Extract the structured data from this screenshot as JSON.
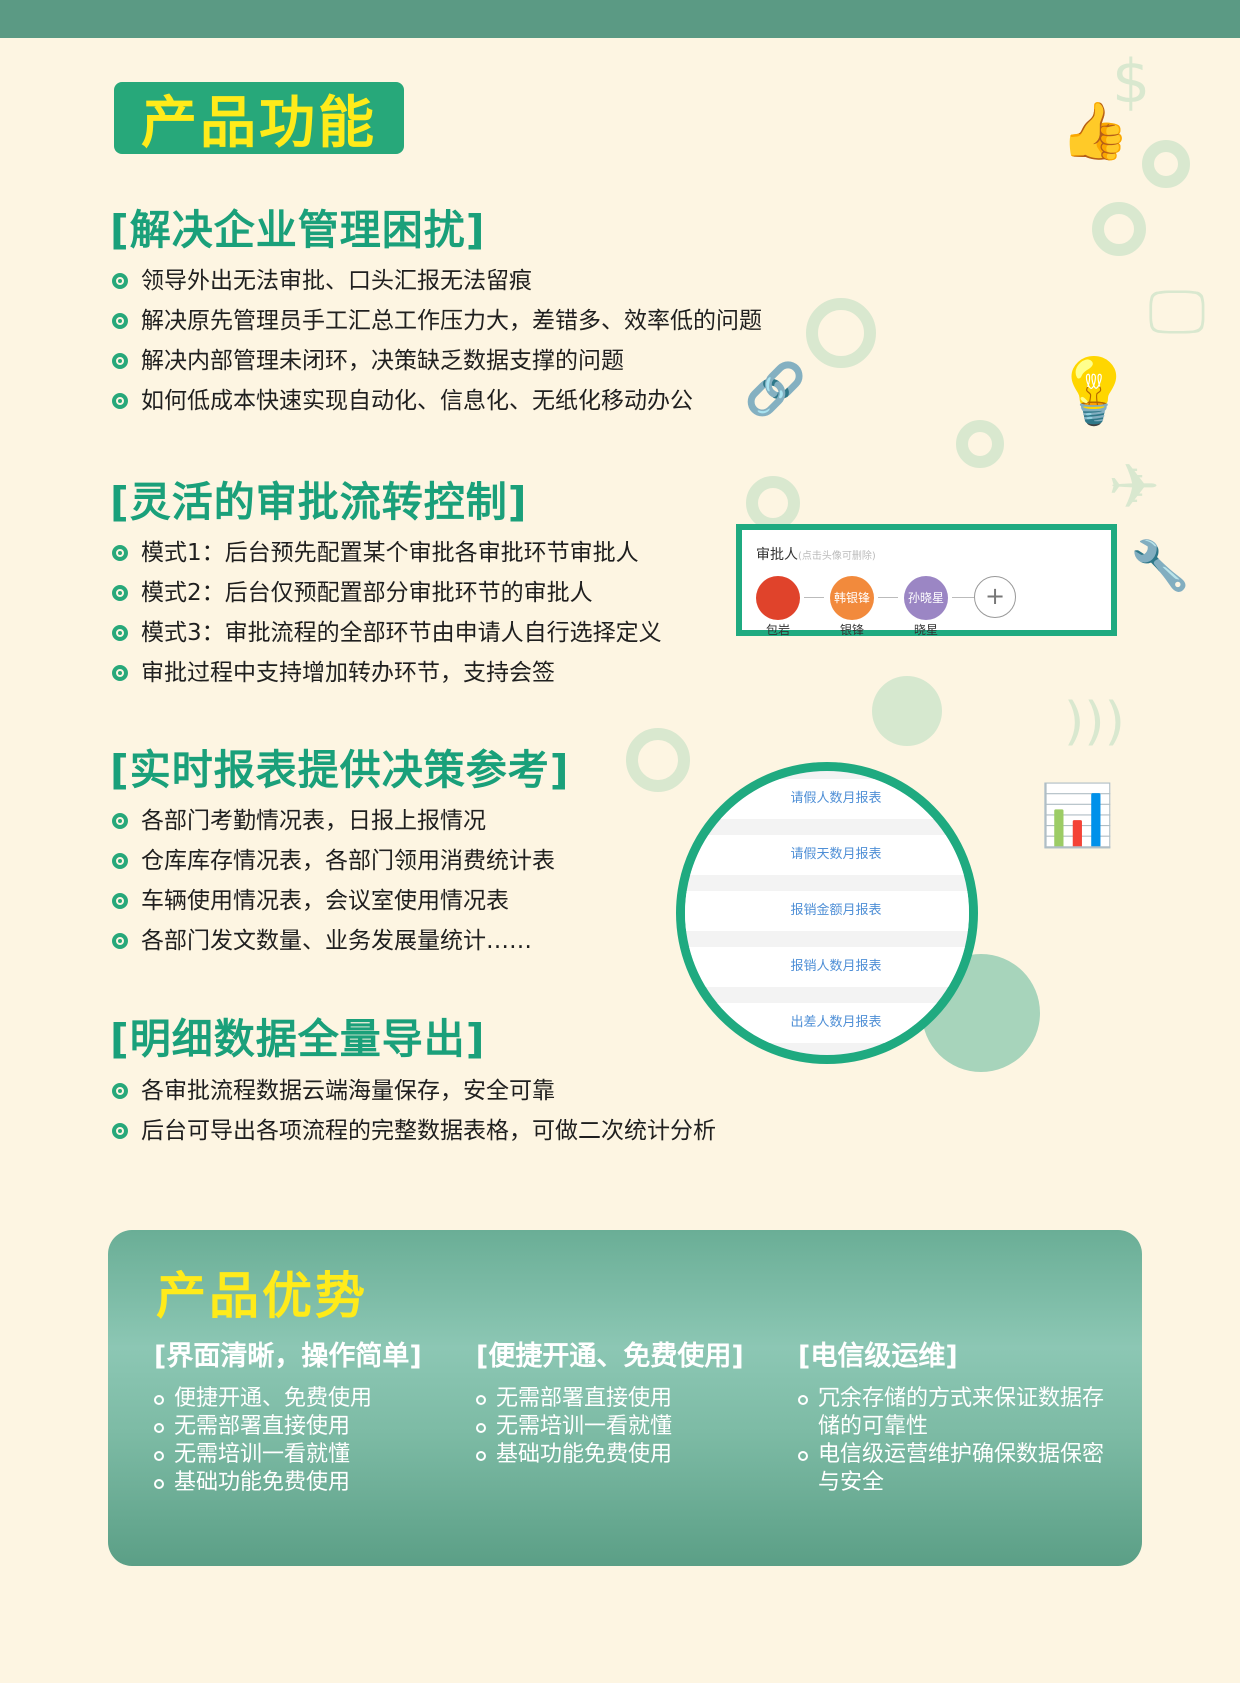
{
  "header": {
    "badge": "产品功能"
  },
  "sections": [
    {
      "title": "[解决企业管理困扰]",
      "items": [
        "领导外出无法审批、口头汇报无法留痕",
        "解决原先管理员手工汇总工作压力大，差错多、效率低的问题",
        "解决内部管理未闭环，决策缺乏数据支撑的问题",
        "如何低成本快速实现自动化、信息化、无纸化移动办公"
      ]
    },
    {
      "title": "[灵活的审批流转控制]",
      "items": [
        "模式1：后台预先配置某个审批各审批环节审批人",
        "模式2：后台仅预配置部分审批环节的审批人",
        "模式3：审批流程的全部环节由申请人自行选择定义",
        "审批过程中支持增加转办环节，支持会签"
      ]
    },
    {
      "title": "[实时报表提供决策参考]",
      "items": [
        "各部门考勤情况表，日报上报情况",
        "仓库库存情况表，各部门领用消费统计表",
        "车辆使用情况表，会议室使用情况表",
        "各部门发文数量、业务发展量统计……"
      ]
    },
    {
      "title": "[明细数据全量导出]",
      "items": [
        "各审批流程数据云端海量保存，安全可靠",
        "后台可导出各项流程的完整数据表格，可做二次统计分析"
      ]
    }
  ],
  "approver": {
    "label": "审批人",
    "hint": "(点击头像可删除)",
    "people": [
      {
        "avatar_text": "",
        "name": "包岩",
        "color": "#e0432b"
      },
      {
        "avatar_text": "韩银锋",
        "name": "银锋",
        "color": "#f28a3c"
      },
      {
        "avatar_text": "孙晓星",
        "name": "晓星",
        "color": "#9b86c4"
      }
    ],
    "add_symbol": "+"
  },
  "reports": [
    "请假人数月报表",
    "请假天数月报表",
    "报销金额月报表",
    "报销人数月报表",
    "出差人数月报表"
  ],
  "advantages": {
    "title": "产品优势",
    "columns": [
      {
        "title": "[界面清晰，操作简单]",
        "items": [
          "便捷开通、免费使用",
          "无需部署直接使用",
          "无需培训一看就懂",
          "基础功能免费使用"
        ]
      },
      {
        "title": "[便捷开通、免费使用]",
        "items": [
          "无需部署直接使用",
          "无需培训一看就懂",
          "基础功能免费使用"
        ]
      },
      {
        "title": "[电信级运维]",
        "items": [
          "冗余存储的方式来保证数据存储的可靠性",
          "电信级运营维护确保数据保密与安全"
        ]
      }
    ]
  },
  "colors": {
    "accent": "#1aa07a",
    "badge_text": "#ffeb1a",
    "background": "#fdf5e2",
    "topbar": "#5b9a84"
  }
}
